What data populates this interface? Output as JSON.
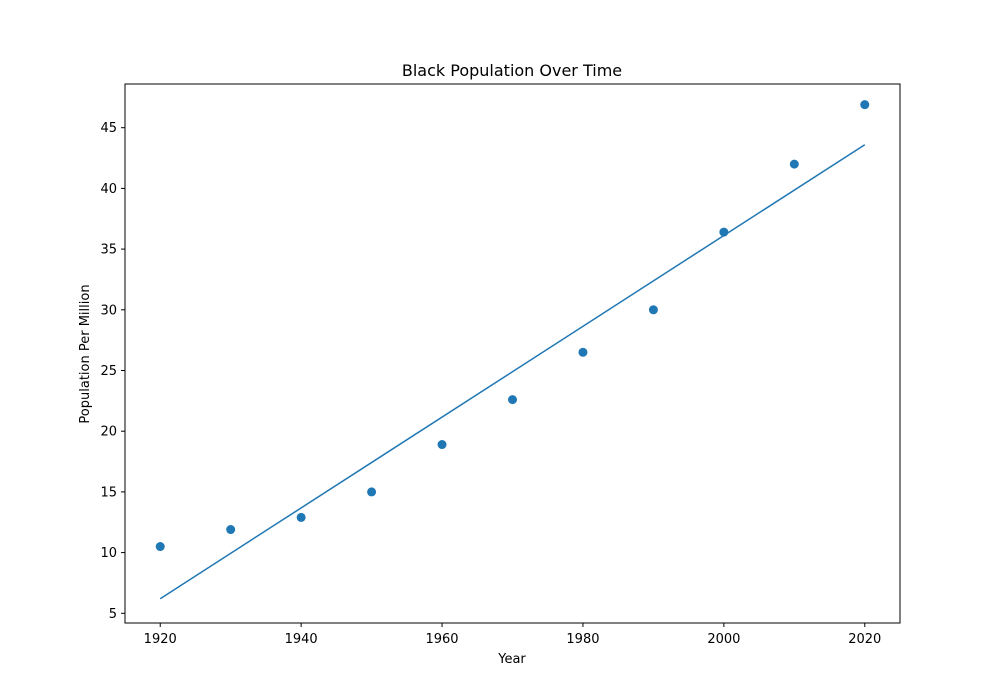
{
  "chart_data": {
    "type": "scatter",
    "title": "Black Population Over Time",
    "xlabel": "Year",
    "ylabel": "Population Per Million",
    "xlim": [
      1915,
      2025
    ],
    "ylim": [
      4.2,
      48.6
    ],
    "xticks": [
      1920,
      1940,
      1960,
      1980,
      2000,
      2020
    ],
    "yticks": [
      5,
      10,
      15,
      20,
      25,
      30,
      35,
      40,
      45
    ],
    "grid": false,
    "legend": "none",
    "series": [
      {
        "kind": "scatter",
        "color": "#1f77b4",
        "x": [
          1920,
          1930,
          1940,
          1950,
          1960,
          1970,
          1980,
          1990,
          2000,
          2010,
          2020
        ],
        "y": [
          10.5,
          11.9,
          12.9,
          15.0,
          18.9,
          22.6,
          26.5,
          30.0,
          36.4,
          42.0,
          46.9
        ]
      },
      {
        "kind": "line",
        "color": "#1f77b4",
        "x": [
          1920,
          2020
        ],
        "y": [
          6.2,
          43.6
        ]
      }
    ]
  }
}
